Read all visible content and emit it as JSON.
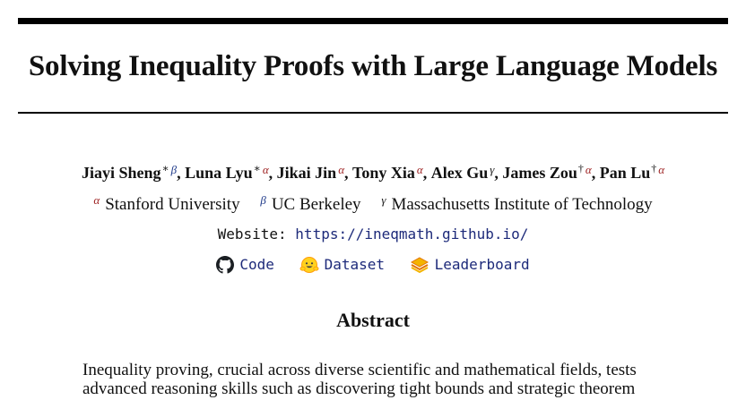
{
  "title": "Solving Inequality Proofs with Large Language Models",
  "symbols": {
    "alpha": "α",
    "beta": "β",
    "gamma": "γ",
    "equal": "∗",
    "corresponding": "†"
  },
  "colors": {
    "alpha": "#9b1c1c",
    "beta": "#1f3a8a",
    "link": "#1d2a7a"
  },
  "authors": [
    {
      "name": "Jiayi Sheng"
    },
    {
      "name": "Luna Lyu"
    },
    {
      "name": "Jikai Jin"
    },
    {
      "name": "Tony Xia"
    },
    {
      "name": "Alex Gu"
    },
    {
      "name": "James Zou"
    },
    {
      "name": "Pan Lu"
    }
  ],
  "affiliations": [
    {
      "name": "Stanford University"
    },
    {
      "name": "UC Berkeley"
    },
    {
      "name": "Massachusetts Institute of Technology"
    }
  ],
  "website": {
    "label": "Website:",
    "url": "https://ineqmath.github.io/"
  },
  "links": [
    {
      "label": "Code",
      "icon": "github-icon"
    },
    {
      "label": "Dataset",
      "icon": "hugging-face-icon"
    },
    {
      "label": "Leaderboard",
      "icon": "leaderboard-icon"
    }
  ],
  "abstract": {
    "heading": "Abstract",
    "lines": [
      "Inequality proving, crucial across diverse scientific and mathematical fields, tests",
      "advanced reasoning skills such as discovering tight bounds and strategic theorem"
    ]
  }
}
